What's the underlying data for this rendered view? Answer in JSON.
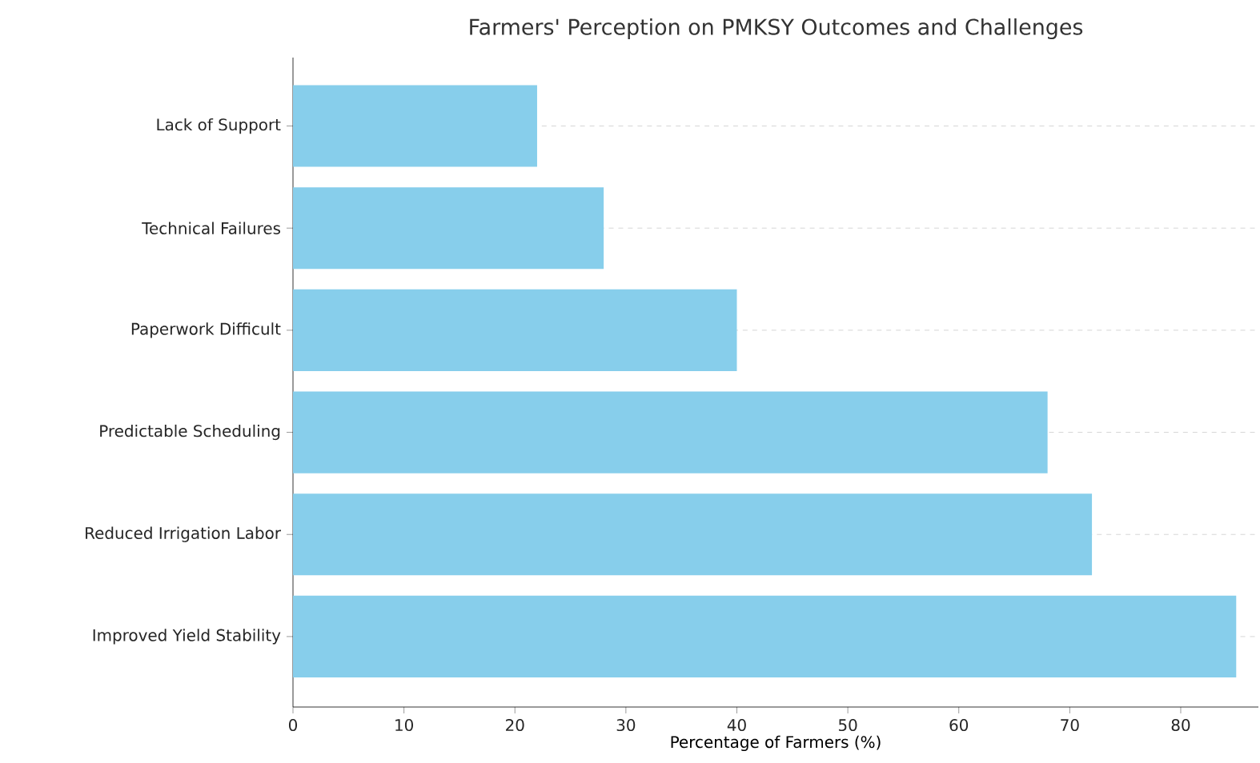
{
  "chart_data": {
    "type": "bar",
    "orientation": "horizontal",
    "title": "Farmers' Perception on PMKSY Outcomes and Challenges",
    "xlabel": "Percentage of Farmers (%)",
    "categories": [
      "Lack of Support",
      "Technical Failures",
      "Paperwork Difficult",
      "Predictable Scheduling",
      "Reduced Irrigation Labor",
      "Improved Yield Stability"
    ],
    "values": [
      22,
      28,
      40,
      68,
      72,
      85
    ],
    "color": "#87ceeb",
    "xlim": [
      0,
      87
    ],
    "xticks": [
      0,
      10,
      20,
      30,
      40,
      50,
      60,
      70,
      80
    ],
    "grid": "y"
  }
}
